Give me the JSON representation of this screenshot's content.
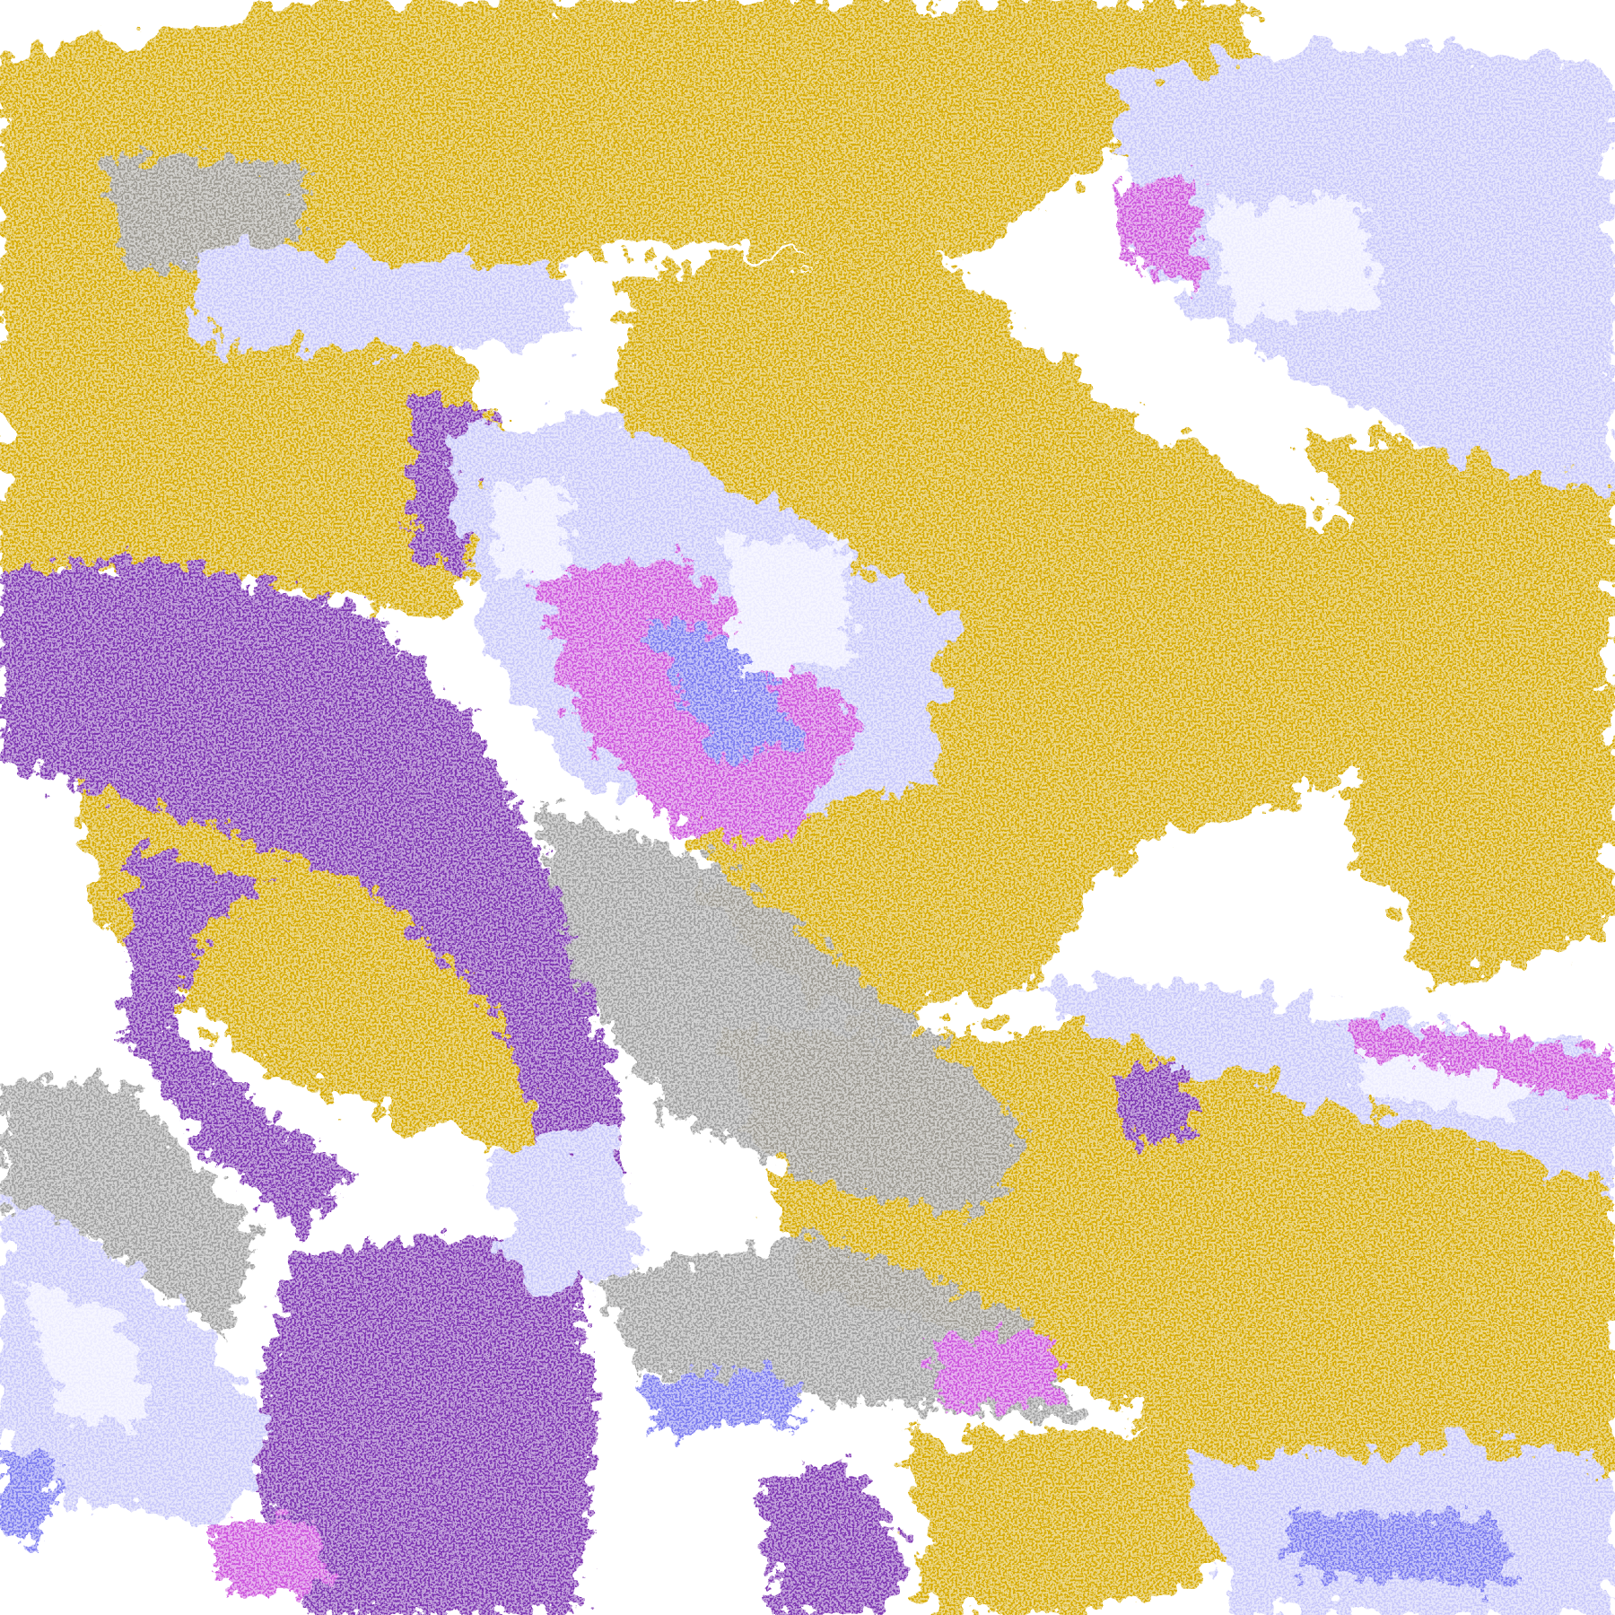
{
  "map": {
    "palette": {
      "background": "#ffffff",
      "gold": "#d6aa00",
      "purple": "#7d35b2",
      "magenta": "#cc55dd",
      "lavender": "#c8c8fa",
      "periwinkle": "#7a7af0",
      "gray": "#9a9a9a",
      "pale": "#ececff"
    }
  }
}
